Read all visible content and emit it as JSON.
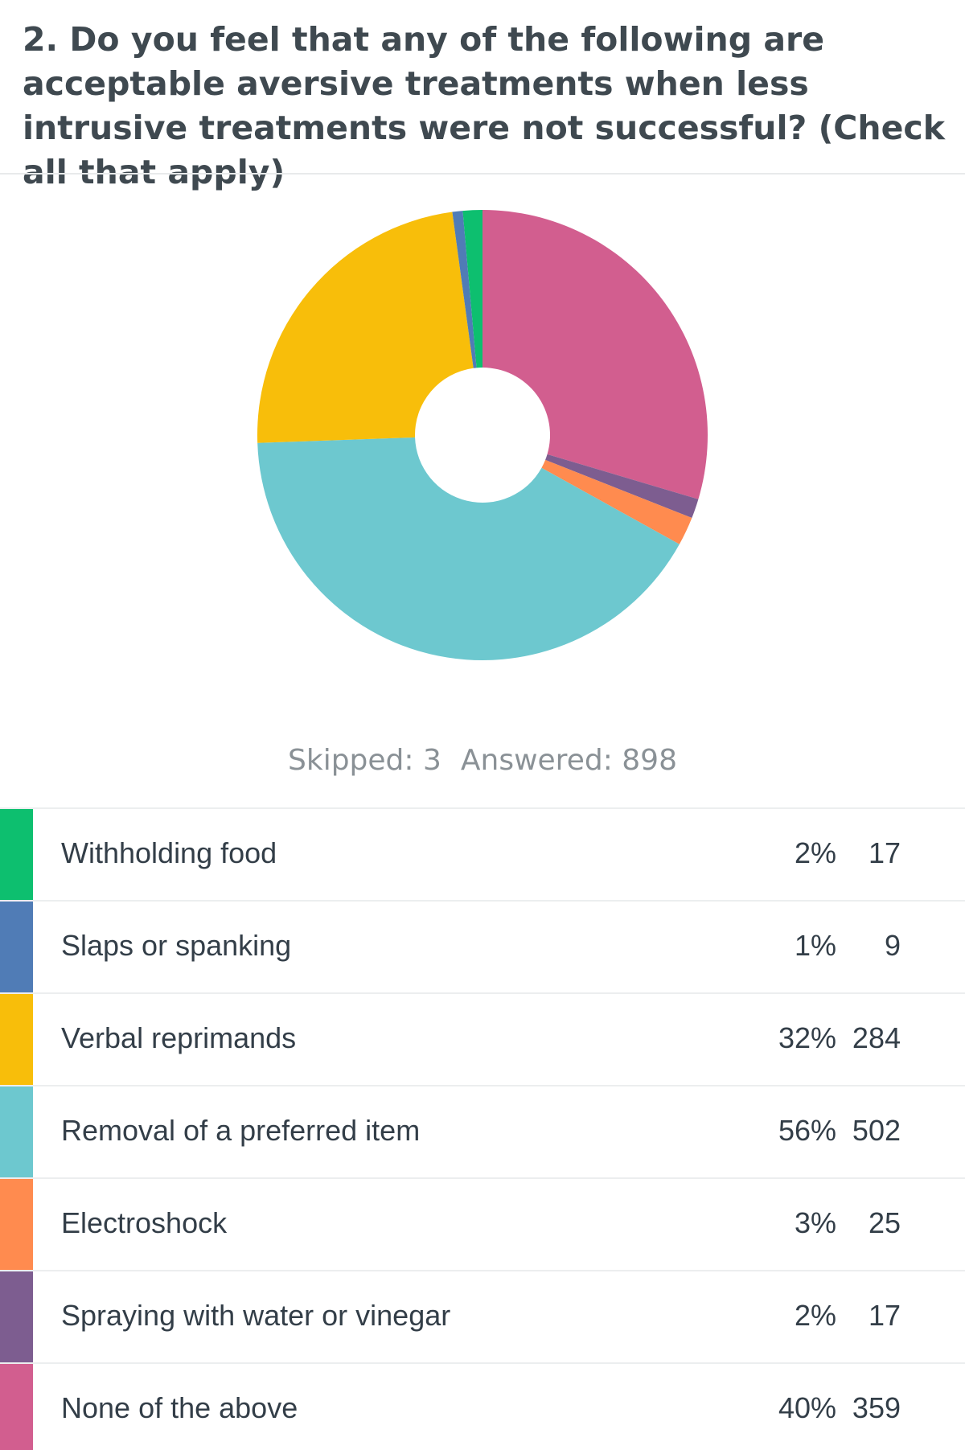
{
  "chart_data": {
    "type": "pie",
    "title": "2. Do you feel that any of the following are acceptable aversive treatments when less intrusive treatments were not successful? (Check all that apply)",
    "categories": [
      "Withholding food",
      "Slaps or spanking",
      "Verbal reprimands",
      "Removal of a preferred item",
      "Electroshock",
      "Spraying with water or vinegar",
      "None of the above"
    ],
    "values": [
      17,
      9,
      284,
      502,
      25,
      17,
      359
    ],
    "shares": [
      {
        "value": 2,
        "label": "2%"
      },
      {
        "value": 1,
        "label": "1%"
      },
      {
        "value": 32,
        "label": "32%"
      },
      {
        "value": 56,
        "label": "56%"
      },
      {
        "value": 3,
        "label": "3%"
      },
      {
        "value": 2,
        "label": "2%"
      },
      {
        "value": 40,
        "label": "40%"
      }
    ],
    "colors": [
      "#0dbf6f",
      "#507cb6",
      "#f8be0a",
      "#6dc8cf",
      "#ff8b4f",
      "#7d5d90",
      "#d25e8f"
    ],
    "skipped": "Skipped: 3",
    "answered": "Answered: 898",
    "donut": true
  }
}
